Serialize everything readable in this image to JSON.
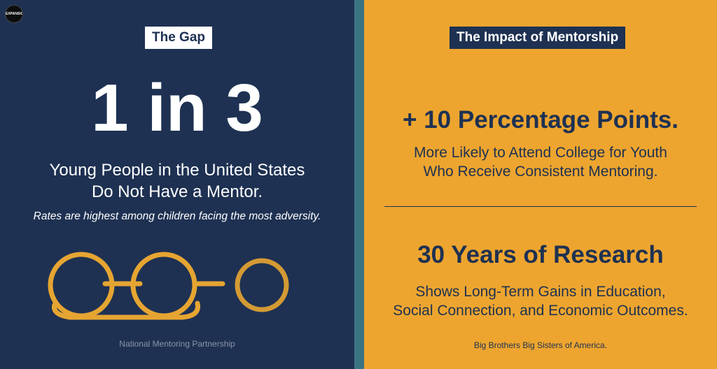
{
  "logo": {
    "text": "EXPANSION YOUTH",
    "icon": "cross-emblem-icon"
  },
  "left": {
    "tag": "The Gap",
    "stat": "1 in 3",
    "description_line1": "Young People in the United States",
    "description_line2": "Do Not Have a Mentor.",
    "note": "Rates are highest among children facing the most adversity.",
    "illustration_icon": "eyeglasses-icon",
    "source": "National Mentoring Partnership"
  },
  "right": {
    "tag": "The Impact of Mentorship",
    "stat1_headline": "+ 10 Percentage Points.",
    "stat1_line1": "More Likely to Attend College for Youth",
    "stat1_line2": "Who Receive Consistent Mentoring.",
    "stat2_headline": "30 Years of Research",
    "stat2_line1": "Shows Long-Term Gains in Education,",
    "stat2_line2": "Social Connection, and Economic Outcomes.",
    "source": "Big Brothers Big Sisters of America."
  },
  "colors": {
    "navy": "#1e3152",
    "gold": "#eda52f",
    "teal_divider": "#3a7482",
    "glasses": "#e6a532"
  }
}
